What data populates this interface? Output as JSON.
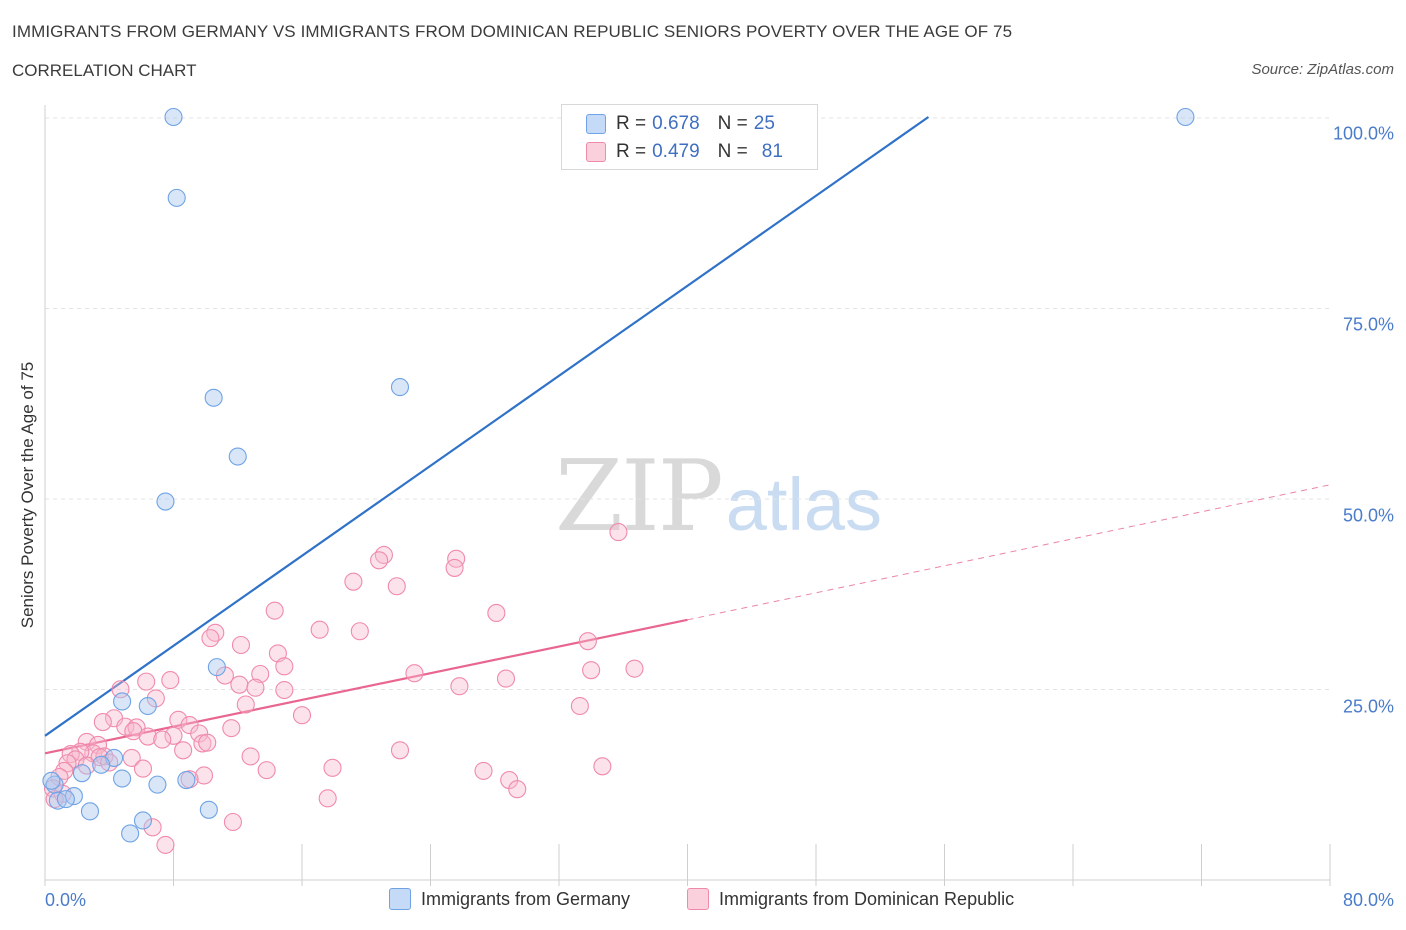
{
  "header": {
    "title": "IMMIGRANTS FROM GERMANY VS IMMIGRANTS FROM DOMINICAN REPUBLIC SENIORS POVERTY OVER THE AGE OF 75",
    "subtitle": "CORRELATION CHART",
    "source": "Source: ZipAtlas.com"
  },
  "watermark": {
    "zip": "ZIP",
    "atlas": "atlas"
  },
  "legend": {
    "rows": [
      {
        "r_label": "R = ",
        "r_value": "0.678",
        "n_label": "N = ",
        "n_value": "25",
        "color": "#a8c8f0"
      },
      {
        "r_label": "R = ",
        "r_value": "0.479",
        "n_label": "N = ",
        "n_value": "81",
        "color": "#f7b9cc"
      }
    ]
  },
  "axis": {
    "ylabel": "Seniors Poverty Over the Age of 75",
    "yticks": [
      "100.0%",
      "75.0%",
      "50.0%",
      "25.0%"
    ],
    "xmin_label": "0.0%",
    "xmax_label": "80.0%"
  },
  "bottom_legend": [
    "Immigrants from Germany",
    "Immigrants from Dominican Republic"
  ],
  "chart_data": {
    "type": "scatter",
    "xlabel": "",
    "ylabel": "Seniors Poverty Over the Age of 75",
    "xlim": [
      0,
      80
    ],
    "ylim": [
      0,
      100
    ],
    "grid": true,
    "colors": {
      "germany": "#6fa3e6",
      "dominican": "#f08aab",
      "germany_line": "#2f72c8",
      "dominican_line": "#e8668f"
    },
    "series": [
      {
        "name": "Immigrants from Germany",
        "trend": {
          "x0": 0,
          "y0": 18.9,
          "x1": 55,
          "y1": 100
        },
        "points": [
          [
            8.0,
            100.0
          ],
          [
            8.2,
            89.4
          ],
          [
            71.0,
            100.0
          ],
          [
            22.1,
            64.6
          ],
          [
            10.5,
            63.2
          ],
          [
            12.0,
            55.5
          ],
          [
            7.5,
            49.6
          ],
          [
            10.7,
            27.9
          ],
          [
            6.4,
            22.8
          ],
          [
            4.8,
            23.4
          ],
          [
            4.3,
            16.0
          ],
          [
            3.5,
            15.1
          ],
          [
            2.3,
            14.0
          ],
          [
            4.8,
            13.3
          ],
          [
            8.8,
            13.1
          ],
          [
            7.0,
            12.5
          ],
          [
            1.8,
            11.0
          ],
          [
            0.6,
            12.5
          ],
          [
            0.8,
            10.4
          ],
          [
            1.3,
            10.6
          ],
          [
            2.8,
            9.0
          ],
          [
            10.2,
            9.2
          ],
          [
            6.1,
            7.8
          ],
          [
            5.3,
            6.1
          ],
          [
            0.4,
            13.0
          ]
        ]
      },
      {
        "name": "Immigrants from Dominican Republic",
        "trend": {
          "x0": 0,
          "y0": 16.6,
          "x1": 40,
          "y1": 34.1,
          "dash_x1": 80,
          "dash_y1": 51.8
        },
        "points": [
          [
            35.7,
            45.6
          ],
          [
            21.1,
            42.6
          ],
          [
            25.6,
            42.1
          ],
          [
            20.8,
            41.9
          ],
          [
            25.5,
            40.9
          ],
          [
            19.2,
            39.1
          ],
          [
            21.9,
            38.5
          ],
          [
            14.3,
            35.3
          ],
          [
            28.1,
            35.0
          ],
          [
            17.1,
            32.8
          ],
          [
            19.6,
            32.6
          ],
          [
            10.6,
            32.4
          ],
          [
            10.3,
            31.7
          ],
          [
            12.2,
            30.8
          ],
          [
            33.8,
            31.3
          ],
          [
            14.5,
            29.7
          ],
          [
            14.9,
            28.0
          ],
          [
            23.0,
            27.1
          ],
          [
            34.0,
            27.5
          ],
          [
            36.7,
            27.7
          ],
          [
            13.4,
            27.0
          ],
          [
            11.2,
            26.8
          ],
          [
            28.7,
            26.4
          ],
          [
            6.3,
            26.0
          ],
          [
            7.8,
            26.2
          ],
          [
            12.1,
            25.6
          ],
          [
            13.1,
            25.2
          ],
          [
            4.7,
            25.0
          ],
          [
            25.8,
            25.4
          ],
          [
            14.9,
            24.9
          ],
          [
            6.9,
            23.8
          ],
          [
            12.5,
            23.0
          ],
          [
            33.3,
            22.8
          ],
          [
            16.0,
            21.6
          ],
          [
            4.3,
            21.2
          ],
          [
            8.3,
            21.0
          ],
          [
            3.6,
            20.7
          ],
          [
            5.0,
            20.1
          ],
          [
            5.7,
            20.0
          ],
          [
            9.0,
            20.3
          ],
          [
            11.6,
            19.9
          ],
          [
            5.5,
            19.5
          ],
          [
            9.6,
            19.2
          ],
          [
            6.4,
            18.8
          ],
          [
            8.0,
            18.9
          ],
          [
            7.3,
            18.4
          ],
          [
            9.8,
            17.9
          ],
          [
            10.1,
            18.0
          ],
          [
            2.6,
            18.1
          ],
          [
            3.3,
            17.7
          ],
          [
            8.6,
            17.0
          ],
          [
            3.0,
            16.6
          ],
          [
            2.2,
            16.8
          ],
          [
            1.6,
            16.5
          ],
          [
            3.7,
            16.2
          ],
          [
            5.4,
            16.0
          ],
          [
            1.9,
            15.8
          ],
          [
            12.8,
            16.2
          ],
          [
            3.4,
            16.1
          ],
          [
            1.4,
            15.3
          ],
          [
            6.1,
            14.6
          ],
          [
            1.2,
            14.3
          ],
          [
            22.1,
            17.0
          ],
          [
            17.9,
            14.7
          ],
          [
            34.7,
            14.9
          ],
          [
            13.8,
            14.4
          ],
          [
            27.3,
            14.3
          ],
          [
            9.9,
            13.7
          ],
          [
            0.9,
            13.5
          ],
          [
            9.0,
            13.2
          ],
          [
            28.9,
            13.1
          ],
          [
            29.4,
            11.9
          ],
          [
            0.5,
            12.0
          ],
          [
            1.1,
            11.3
          ],
          [
            17.6,
            10.7
          ],
          [
            0.6,
            10.6
          ],
          [
            11.7,
            7.6
          ],
          [
            6.7,
            6.9
          ],
          [
            7.5,
            4.6
          ],
          [
            2.6,
            15.0
          ],
          [
            4.0,
            15.4
          ]
        ]
      }
    ]
  }
}
